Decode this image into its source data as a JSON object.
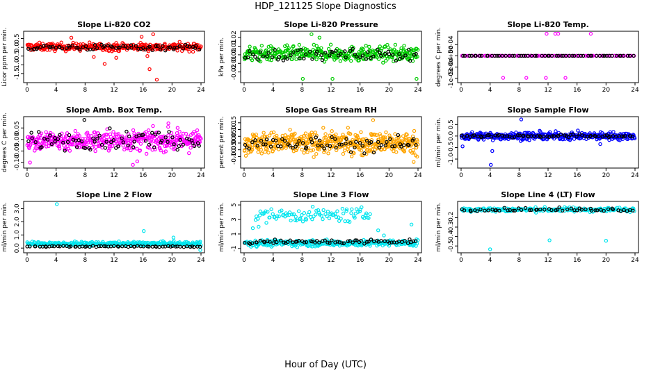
{
  "figure": {
    "title": "HDP_121125  Slope Diagnostics",
    "xlabel": "Hour of Day (UTC)"
  },
  "chart_data": [
    {
      "type": "scatter",
      "title": "Slope Li-820 CO2",
      "ylabel": "Licor ppm per min.",
      "xlim": [
        0,
        24
      ],
      "ylim": [
        -1.9,
        0.8
      ],
      "xticks": [
        0,
        4,
        8,
        12,
        16,
        20,
        24
      ],
      "yticks": [
        -1.5,
        -1.0,
        -0.5,
        0.0,
        0.5
      ],
      "ytick_labels": [
        "-1.5",
        "-1.0",
        "-0.5",
        "0.0",
        "0.5"
      ],
      "series": [
        {
          "color": "#ff0000",
          "band": [
            -0.3,
            0.35
          ],
          "count": 330,
          "outliers": [
            {
              "x": 9.2,
              "y": -0.55
            },
            {
              "x": 10.7,
              "y": -0.95
            },
            {
              "x": 12.3,
              "y": -0.6
            },
            {
              "x": 16.6,
              "y": -0.5
            },
            {
              "x": 16.9,
              "y": -1.25
            },
            {
              "x": 17.9,
              "y": -1.85
            },
            {
              "x": 17.4,
              "y": 0.75
            },
            {
              "x": 15.8,
              "y": 0.6
            },
            {
              "x": 6.1,
              "y": 0.55
            }
          ]
        },
        {
          "color": "#000000",
          "band": [
            -0.25,
            0.25
          ],
          "count": 70,
          "outliers": []
        }
      ]
    },
    {
      "type": "scatter",
      "title": "Slope Li-820 Pressure",
      "ylabel": "kPa per min.",
      "xlim": [
        0,
        24
      ],
      "ylim": [
        -0.03,
        0.025
      ],
      "xticks": [
        0,
        4,
        8,
        12,
        16,
        20,
        24
      ],
      "yticks": [
        -0.02,
        -0.01,
        0.0,
        0.01,
        0.02
      ],
      "ytick_labels": [
        "-0.02",
        "-0.01",
        "0.00",
        "0.01",
        "0.02"
      ],
      "series": [
        {
          "color": "#00cc00",
          "band": [
            -0.012,
            0.014
          ],
          "count": 360,
          "outliers": [
            {
              "x": 9.3,
              "y": 0.024
            },
            {
              "x": 8.1,
              "y": -0.028
            },
            {
              "x": 12.2,
              "y": -0.028
            },
            {
              "x": 23.8,
              "y": -0.028
            },
            {
              "x": 10.4,
              "y": 0.02
            }
          ]
        },
        {
          "color": "#000000",
          "band": [
            -0.01,
            0.01
          ],
          "count": 65,
          "outliers": []
        }
      ]
    },
    {
      "type": "scatter",
      "title": "Slope Li-820 Temp.",
      "ylabel": "degrees C per min.",
      "xlim": [
        0,
        24
      ],
      "ylim": [
        -0.0011,
        0.001
      ],
      "xticks": [
        0,
        4,
        8,
        12,
        16,
        20,
        24
      ],
      "yticks": [
        -0.001,
        -0.0005,
        0.0,
        0.0005
      ],
      "ytick_labels": [
        "-1e-03",
        "-5e-04",
        "0e+00",
        "5e-04"
      ],
      "series": [
        {
          "color": "#ff00ff",
          "band": [
            0,
            0
          ],
          "count": 95,
          "outliers": [
            {
              "x": 5.8,
              "y": -0.00098
            },
            {
              "x": 9.0,
              "y": -0.00098
            },
            {
              "x": 11.8,
              "y": 0.00098
            },
            {
              "x": 13.0,
              "y": 0.00098
            },
            {
              "x": 13.4,
              "y": 0.00098
            },
            {
              "x": 11.7,
              "y": -0.00098
            },
            {
              "x": 14.4,
              "y": -0.00098
            },
            {
              "x": 17.9,
              "y": 0.00098
            }
          ]
        },
        {
          "color": "#000000",
          "band": [
            0,
            0
          ],
          "count": 60,
          "outliers": []
        }
      ]
    },
    {
      "type": "scatter",
      "title": "Slope Amb. Box Temp.",
      "ylabel": "degrees C per min.",
      "xlim": [
        0,
        24
      ],
      "ylim": [
        -0.115,
        0.09
      ],
      "xticks": [
        0,
        4,
        8,
        12,
        16,
        20,
        24
      ],
      "yticks": [
        -0.1,
        -0.05,
        0.0,
        0.05
      ],
      "ytick_labels": [
        "-0.10",
        "-0.05",
        "0.00",
        "0.05"
      ],
      "series": [
        {
          "color": "#ff00ff",
          "band": [
            -0.07,
            0.06
          ],
          "count": 430,
          "outliers": [
            {
              "x": 0.4,
              "y": -0.1
            },
            {
              "x": 14.6,
              "y": -0.11
            },
            {
              "x": 15.2,
              "y": -0.095
            },
            {
              "x": 19.5,
              "y": 0.07
            }
          ]
        },
        {
          "color": "#000000",
          "band": [
            -0.06,
            0.06
          ],
          "count": 75,
          "outliers": [
            {
              "x": 7.9,
              "y": 0.085
            }
          ]
        }
      ]
    },
    {
      "type": "scatter",
      "title": "Slope Gas Stream RH",
      "ylabel": "percent per min.",
      "xlim": [
        0,
        24
      ],
      "ylim": [
        -0.17,
        0.18
      ],
      "xticks": [
        0,
        4,
        8,
        12,
        16,
        20,
        24
      ],
      "yticks": [
        -0.1,
        -0.05,
        0.0,
        0.05,
        0.1,
        0.15
      ],
      "ytick_labels": [
        "-0.10",
        "-0.05",
        "0.00",
        "0.05",
        "0.10",
        "0.15"
      ],
      "series": [
        {
          "color": "#ffa500",
          "band": [
            -0.12,
            0.12
          ],
          "count": 480,
          "outliers": [
            {
              "x": 17.8,
              "y": 0.17
            },
            {
              "x": 23.4,
              "y": -0.14
            }
          ]
        },
        {
          "color": "#000000",
          "band": [
            -0.1,
            0.08
          ],
          "count": 70,
          "outliers": []
        }
      ]
    },
    {
      "type": "scatter",
      "title": "Slope Sample Flow",
      "ylabel": "ml/min per min.",
      "xlim": [
        0,
        24
      ],
      "ylim": [
        -1.3,
        0.75
      ],
      "xticks": [
        0,
        4,
        8,
        12,
        16,
        20,
        24
      ],
      "yticks": [
        -1.0,
        -0.5,
        0.0,
        0.5
      ],
      "ytick_labels": [
        "-1.0",
        "-0.5",
        "0.0",
        "0.5"
      ],
      "series": [
        {
          "color": "#0000ff",
          "band": [
            -0.25,
            0.25
          ],
          "count": 360,
          "outliers": [
            {
              "x": 4.1,
              "y": -1.25
            },
            {
              "x": 4.3,
              "y": -0.65
            },
            {
              "x": 8.3,
              "y": 0.72
            },
            {
              "x": 0.2,
              "y": -0.45
            },
            {
              "x": 19.2,
              "y": -0.35
            }
          ]
        },
        {
          "color": "#000000",
          "band": [
            -0.1,
            0.1
          ],
          "count": 70,
          "outliers": []
        }
      ]
    },
    {
      "type": "scatter",
      "title": "Slope Line 2 Flow",
      "ylabel": "ml/min per min.",
      "xlim": [
        0,
        24
      ],
      "ylim": [
        -0.2,
        3.4
      ],
      "xticks": [
        0,
        4,
        8,
        12,
        16,
        20,
        24
      ],
      "yticks": [
        0.0,
        1.0,
        2.0,
        3.0
      ],
      "ytick_labels": [
        "0.0",
        "1.0",
        "2.0",
        "3.0"
      ],
      "series": [
        {
          "color": "#00e5ee",
          "band": [
            0.1,
            0.55
          ],
          "count": 330,
          "outliers": [
            {
              "x": 4.1,
              "y": 3.35
            },
            {
              "x": 16.1,
              "y": 1.3
            },
            {
              "x": 23.9,
              "y": -0.15
            },
            {
              "x": 20.2,
              "y": 0.8
            }
          ]
        },
        {
          "color": "#000000",
          "band": [
            0.05,
            0.2
          ],
          "count": 65,
          "outliers": []
        }
      ]
    },
    {
      "type": "scatter",
      "title": "Slope Line 3 Flow",
      "ylabel": "ml/min per min.",
      "xlim": [
        0,
        24
      ],
      "ylim": [
        -1.3,
        5.2
      ],
      "xticks": [
        0,
        4,
        8,
        12,
        16,
        20,
        24
      ],
      "yticks": [
        -1,
        1,
        3,
        5
      ],
      "ytick_labels": [
        "-1",
        "1",
        "3",
        "5"
      ],
      "series": [
        {
          "color": "#00e5ee",
          "band": [
            -0.9,
            0.4
          ],
          "count": 300,
          "outliers": []
        },
        {
          "color": "#00e5ee",
          "band": [
            2.2,
            5.0
          ],
          "count": 95,
          "xrange": [
            1.5,
            17.5
          ],
          "outliers": [
            {
              "x": 1.2,
              "y": 1.8
            },
            {
              "x": 2.0,
              "y": 2.0
            },
            {
              "x": 18.5,
              "y": 1.5
            },
            {
              "x": 19.3,
              "y": 0.8
            },
            {
              "x": 23.1,
              "y": 2.3
            }
          ]
        },
        {
          "color": "#000000",
          "band": [
            -0.5,
            0.4
          ],
          "count": 70,
          "outliers": []
        }
      ]
    },
    {
      "type": "scatter",
      "title": "Slope Line 4 (LT) Flow",
      "ylabel": "ml/min per min.",
      "xlim": [
        0,
        24
      ],
      "ylim": [
        -0.55,
        -0.05
      ],
      "xticks": [
        0,
        4,
        8,
        12,
        16,
        20,
        24
      ],
      "yticks": [
        -0.5,
        -0.4,
        -0.3,
        -0.2
      ],
      "ytick_labels": [
        "-0.5",
        "-0.4",
        "-0.3",
        "-0.2"
      ],
      "series": [
        {
          "color": "#00e5ee",
          "band": [
            -0.15,
            -0.08
          ],
          "count": 200,
          "outliers": [
            {
              "x": 4.0,
              "y": -0.535
            },
            {
              "x": 12.2,
              "y": -0.44
            },
            {
              "x": 20.0,
              "y": -0.445
            }
          ]
        },
        {
          "color": "#000000",
          "band": [
            -0.14,
            -0.09
          ],
          "count": 55,
          "outliers": []
        }
      ]
    }
  ]
}
